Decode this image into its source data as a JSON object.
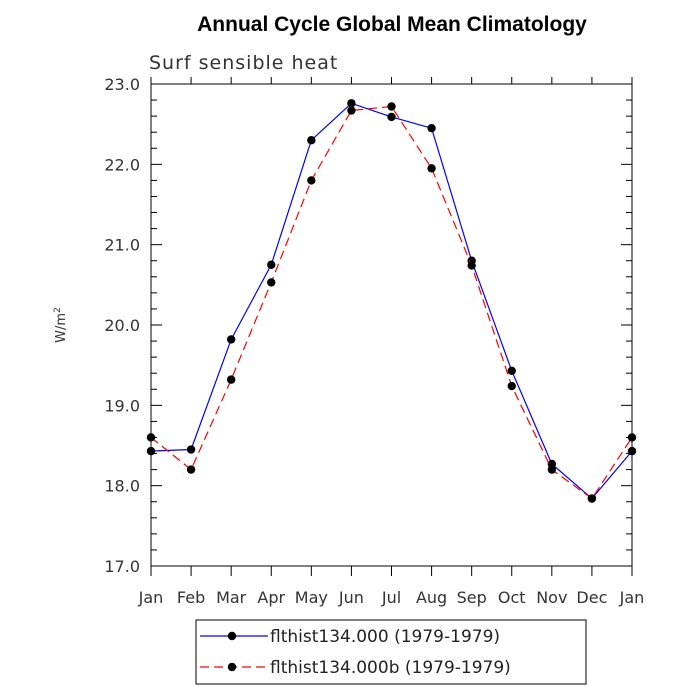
{
  "chart_data": {
    "type": "line",
    "title": "Annual Cycle Global Mean Climatology",
    "subtitle": "Surf sensible heat",
    "ylabel": "W/m",
    "ylabel_superscript": "2",
    "categories": [
      "Jan",
      "Feb",
      "Mar",
      "Apr",
      "May",
      "Jun",
      "Jul",
      "Aug",
      "Sep",
      "Oct",
      "Nov",
      "Dec",
      "Jan"
    ],
    "ylim": [
      17.0,
      23.0
    ],
    "yticks": [
      "17.0",
      "18.0",
      "19.0",
      "20.0",
      "21.0",
      "22.0",
      "23.0"
    ],
    "series": [
      {
        "name": "flthist134.000 (1979-1979)",
        "color": "#0000ff",
        "dash": "solid",
        "values": [
          18.43,
          18.45,
          19.82,
          20.75,
          22.3,
          22.76,
          22.59,
          22.45,
          20.8,
          19.43,
          18.27,
          17.84,
          18.43
        ]
      },
      {
        "name": "flthist134.000b (1979-1979)",
        "color": "#ff0000",
        "dash": "dashed",
        "values": [
          18.6,
          18.2,
          19.32,
          20.53,
          21.8,
          22.67,
          22.72,
          21.95,
          20.74,
          19.24,
          18.2,
          17.84,
          18.6
        ]
      }
    ],
    "legend_position": "bottom"
  }
}
